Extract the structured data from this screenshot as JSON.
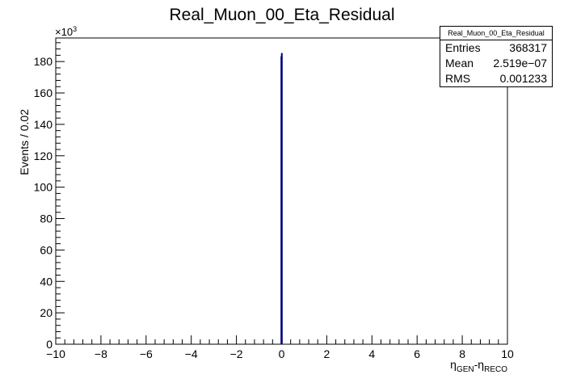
{
  "chart_data": {
    "type": "bar",
    "title": "Real_Muon_00_Eta_Residual",
    "xlabel": "η_GEN-η_RECO",
    "xlabel_main_1": "η",
    "xlabel_sub_1": "GEN",
    "xlabel_mid": "-η",
    "xlabel_sub_2": "RECO",
    "ylabel": "Events / 0.02",
    "y_multiplier": "×10",
    "y_multiplier_exp": "3",
    "xlim": [
      -10,
      10
    ],
    "ylim": [
      0,
      195
    ],
    "x_ticks": [
      -10,
      -8,
      -6,
      -4,
      -2,
      0,
      2,
      4,
      6,
      8,
      10
    ],
    "x_tick_labels": [
      "−10",
      "−8",
      "−6",
      "−4",
      "−2",
      "0",
      "2",
      "4",
      "6",
      "8",
      "10"
    ],
    "y_ticks": [
      0,
      20,
      40,
      60,
      80,
      100,
      120,
      140,
      160,
      180
    ],
    "y_tick_labels": [
      "0",
      "20",
      "40",
      "60",
      "80",
      "100",
      "120",
      "140",
      "160",
      "180"
    ],
    "bin_width": 0.02,
    "bins": [
      {
        "x": -0.01,
        "value": 183
      },
      {
        "x": 0.01,
        "value": 185
      }
    ],
    "line_color": "#000080",
    "grid": false,
    "legend": "none"
  },
  "stats_box": {
    "title": "Real_Muon_00_Eta_Residual",
    "rows": [
      {
        "label": "Entries",
        "value": "368317"
      },
      {
        "label": "Mean",
        "value": "2.519e−07"
      },
      {
        "label": "RMS",
        "value": "0.001233"
      }
    ]
  }
}
